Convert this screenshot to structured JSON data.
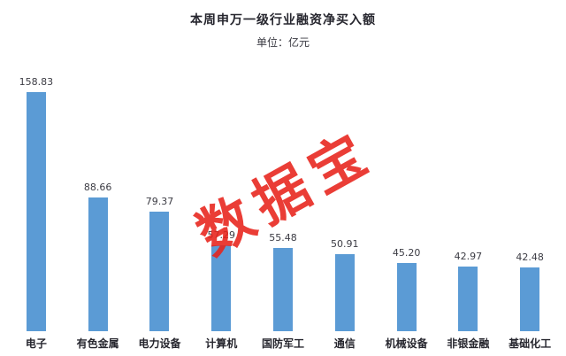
{
  "chart_data": {
    "type": "bar",
    "title": "本周申万一级行业融资净买入额",
    "subtitle": "单位：亿元",
    "categories": [
      "电子",
      "有色金属",
      "电力设备",
      "计算机",
      "国防军工",
      "通信",
      "机械设备",
      "非银金融",
      "基础化工"
    ],
    "values": [
      158.83,
      88.66,
      79.37,
      57.29,
      55.48,
      50.91,
      45.2,
      42.97,
      42.48
    ],
    "value_labels": [
      "158.83",
      "88.66",
      "79.37",
      "57.29",
      "55.48",
      "50.91",
      "45.20",
      "42.97",
      "42.48"
    ],
    "xlabel": "",
    "ylabel": "",
    "ylim": [
      0,
      170
    ],
    "grid": false,
    "legend": false,
    "bar_color": "#5b9bd5",
    "watermark_text": "数据宝",
    "watermark_color": "#e8231b"
  }
}
